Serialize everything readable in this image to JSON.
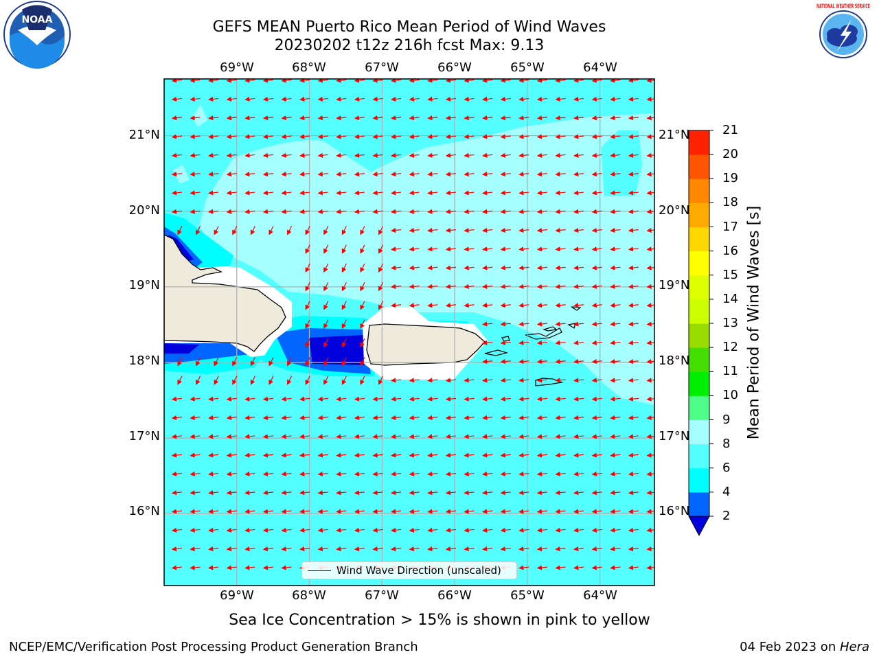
{
  "header": {
    "title_line1": "GEFS MEAN Puerto Rico Mean Period of Wind Waves",
    "title_line2": "20230202 t12z 216h fcst   Max: 9.13"
  },
  "logos": {
    "left": "noaa-logo",
    "right": "nws-logo",
    "left_text": "NOAA",
    "right_text": "NATIONAL WEATHER SERVICE"
  },
  "map": {
    "lon_labels": [
      "69°W",
      "68°W",
      "67°W",
      "66°W",
      "65°W",
      "64°W"
    ],
    "lat_labels": [
      "21°N",
      "20°N",
      "19°N",
      "18°N",
      "17°N",
      "16°N"
    ],
    "lon_range": [
      -70.0,
      -63.25
    ],
    "lat_range": [
      15.05,
      21.75
    ],
    "grid": true,
    "arrow_color": "#ff0000",
    "land_color": "#efebdc",
    "legend": "Wind Wave Direction (unscaled)"
  },
  "colorbar": {
    "title": "Mean Period of Wind Waves [s]",
    "ticks": [
      "2",
      "4",
      "6",
      "8",
      "9",
      "10",
      "11",
      "12",
      "13",
      "14",
      "15",
      "16",
      "17",
      "18",
      "19",
      "20",
      "21"
    ],
    "colors": [
      "#0066ff",
      "#00ffff",
      "#54ffff",
      "#a6ffff",
      "#4dff88",
      "#00ee00",
      "#44dd00",
      "#99dd00",
      "#ccff00",
      "#ddff00",
      "#ffff00",
      "#ffd700",
      "#ffaa00",
      "#ff8800",
      "#ff5500",
      "#ff2200",
      "#ff0000"
    ],
    "under_color": "#0000dd"
  },
  "footer": {
    "subtitle": "Sea Ice Concentration > 15% is shown in pink to yellow",
    "left": "NCEP/EMC/Verification Post Processing Product Generation Branch",
    "right_date": "04 Feb 2023 on ",
    "right_machine": "Hera"
  }
}
